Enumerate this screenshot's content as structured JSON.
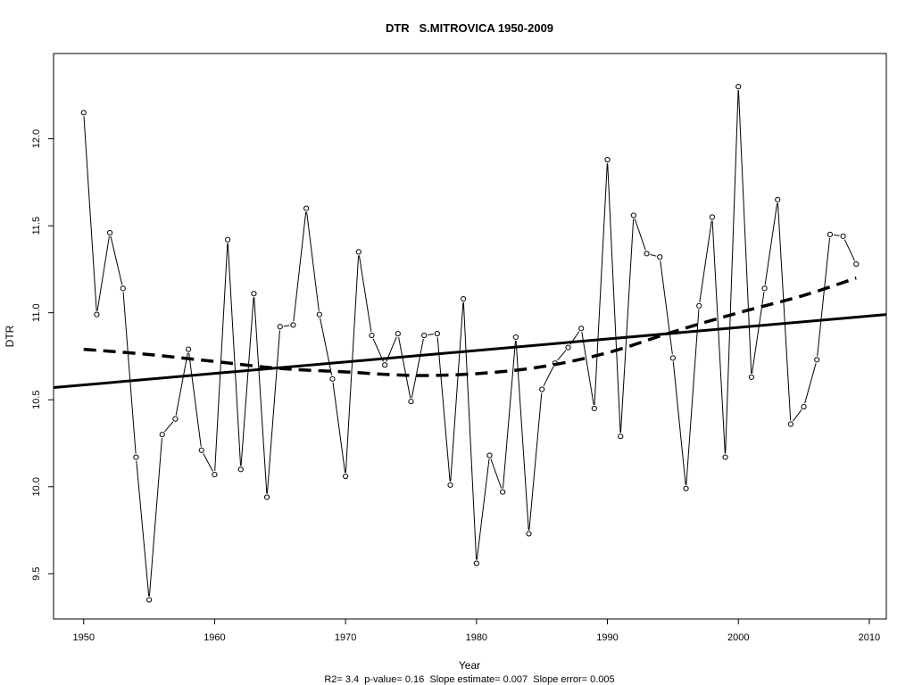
{
  "chart_data": {
    "type": "line",
    "title": "DTR   S.MITROVICA 1950-2009",
    "xlabel": "Year",
    "ylabel": "DTR",
    "footnote": "R2= 3.4  p-value= 0.16  Slope estimate= 0.007  Slope error= 0.005",
    "xlim": [
      1947.7,
      2011.3
    ],
    "ylim": [
      9.24,
      12.49
    ],
    "xticks": [
      1950,
      1960,
      1970,
      1980,
      1990,
      2000,
      2010
    ],
    "xtick_labels": [
      "1950",
      "1960",
      "1970",
      "1980",
      "1990",
      "2000",
      "2010"
    ],
    "yticks": [
      9.5,
      10.0,
      10.5,
      11.0,
      11.5,
      12.0
    ],
    "ytick_labels": [
      "9.5",
      "10.0",
      "10.5",
      "11.0",
      "11.5",
      "12.0"
    ],
    "grid": false,
    "legend": "none",
    "series": [
      {
        "style": "line-points",
        "color": "#000000",
        "x": [
          1950,
          1951,
          1952,
          1953,
          1954,
          1955,
          1956,
          1957,
          1958,
          1959,
          1960,
          1961,
          1962,
          1963,
          1964,
          1965,
          1966,
          1967,
          1968,
          1969,
          1970,
          1971,
          1972,
          1973,
          1974,
          1975,
          1976,
          1977,
          1978,
          1979,
          1980,
          1981,
          1982,
          1983,
          1984,
          1985,
          1986,
          1987,
          1988,
          1989,
          1990,
          1991,
          1992,
          1993,
          1994,
          1995,
          1996,
          1997,
          1998,
          1999,
          2000,
          2001,
          2002,
          2003,
          2004,
          2005,
          2006,
          2007,
          2008,
          2009
        ],
        "y": [
          12.15,
          10.99,
          11.46,
          11.14,
          10.17,
          9.35,
          10.3,
          10.39,
          10.79,
          10.21,
          10.07,
          11.42,
          10.1,
          11.11,
          9.94,
          10.92,
          10.93,
          11.6,
          10.99,
          10.62,
          10.06,
          11.35,
          10.87,
          10.7,
          10.88,
          10.49,
          10.87,
          10.88,
          10.01,
          11.08,
          9.56,
          10.18,
          9.97,
          10.86,
          9.73,
          10.56,
          10.71,
          10.8,
          10.91,
          10.45,
          11.88,
          10.29,
          11.56,
          11.34,
          11.32,
          10.74,
          9.99,
          11.04,
          11.55,
          10.17,
          12.3,
          10.63,
          11.14,
          11.65,
          10.36,
          10.46,
          10.73,
          11.45,
          11.44,
          11.28
        ]
      },
      {
        "style": "linear-trend",
        "color": "#000000",
        "x": [
          1947.7,
          2011.3
        ],
        "y": [
          10.57,
          10.99
        ]
      },
      {
        "style": "smooth-dashed",
        "color": "#000000",
        "x": [
          1950,
          1955,
          1960,
          1965,
          1970,
          1975,
          1980,
          1985,
          1990,
          1995,
          2000,
          2005,
          2009
        ],
        "y": [
          10.79,
          10.76,
          10.72,
          10.68,
          10.66,
          10.64,
          10.65,
          10.69,
          10.77,
          10.89,
          11.0,
          11.1,
          11.2
        ]
      }
    ]
  }
}
